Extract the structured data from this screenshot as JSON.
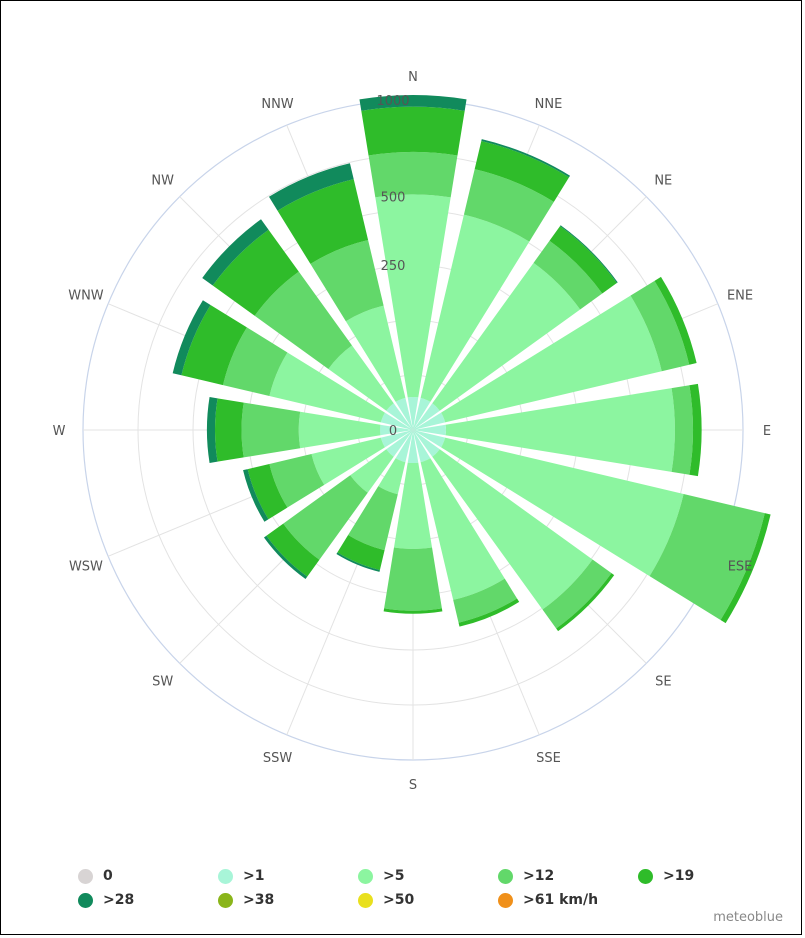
{
  "chart_data": {
    "type": "windrose",
    "directions": [
      "N",
      "NNE",
      "NE",
      "ENE",
      "E",
      "ESE",
      "SE",
      "SSE",
      "S",
      "SSW",
      "SW",
      "WSW",
      "W",
      "WNW",
      "NW",
      "NNW"
    ],
    "radial_ticks": [
      "0",
      "250",
      "500",
      "1000"
    ],
    "radial_tick_values": [
      0,
      250,
      500,
      1000
    ],
    "rmax": 1000,
    "series": [
      {
        "name": "0",
        "color": "#d8d4d4",
        "values": [
          0,
          0,
          0,
          0,
          0,
          0,
          0,
          0,
          0,
          0,
          0,
          0,
          0,
          0,
          0,
          0
        ]
      },
      {
        "name": ">1",
        "color": "#a8f5d8",
        "values": [
          10,
          10,
          10,
          10,
          10,
          10,
          10,
          10,
          10,
          10,
          10,
          10,
          10,
          10,
          10,
          10
        ]
      },
      {
        "name": ">5",
        "color": "#8cf5a0",
        "values": [
          500,
          440,
          380,
          590,
          620,
          700,
          440,
          270,
          120,
          30,
          45,
          90,
          110,
          190,
          90,
          140
        ]
      },
      {
        "name": ">12",
        "color": "#62d86a",
        "values": [
          200,
          210,
          110,
          140,
          90,
          490,
          100,
          80,
          170,
          100,
          180,
          100,
          150,
          150,
          250,
          200
        ]
      },
      {
        "name": ">19",
        "color": "#2fbc2a",
        "values": [
          250,
          150,
          80,
          40,
          45,
          40,
          15,
          15,
          10,
          50,
          65,
          65,
          90,
          170,
          210,
          260
        ]
      },
      {
        "name": ">28",
        "color": "#118a5c",
        "values": [
          70,
          10,
          5,
          0,
          0,
          0,
          0,
          0,
          0,
          5,
          10,
          15,
          30,
          40,
          60,
          80
        ]
      },
      {
        "name": ">38",
        "color": "#8ab51a",
        "values": [
          0,
          0,
          0,
          0,
          0,
          0,
          0,
          0,
          0,
          0,
          0,
          0,
          0,
          0,
          0,
          0
        ]
      },
      {
        "name": ">50",
        "color": "#e9e01e",
        "values": [
          0,
          0,
          0,
          0,
          0,
          0,
          0,
          0,
          0,
          0,
          0,
          0,
          0,
          0,
          0,
          0
        ]
      },
      {
        "name": ">61 km/h",
        "color": "#f0901a",
        "values": [
          0,
          0,
          0,
          0,
          0,
          0,
          0,
          0,
          0,
          0,
          0,
          0,
          0,
          0,
          0,
          0
        ]
      }
    ],
    "grid": true,
    "legend_position": "bottom"
  },
  "credit": "meteoblue"
}
